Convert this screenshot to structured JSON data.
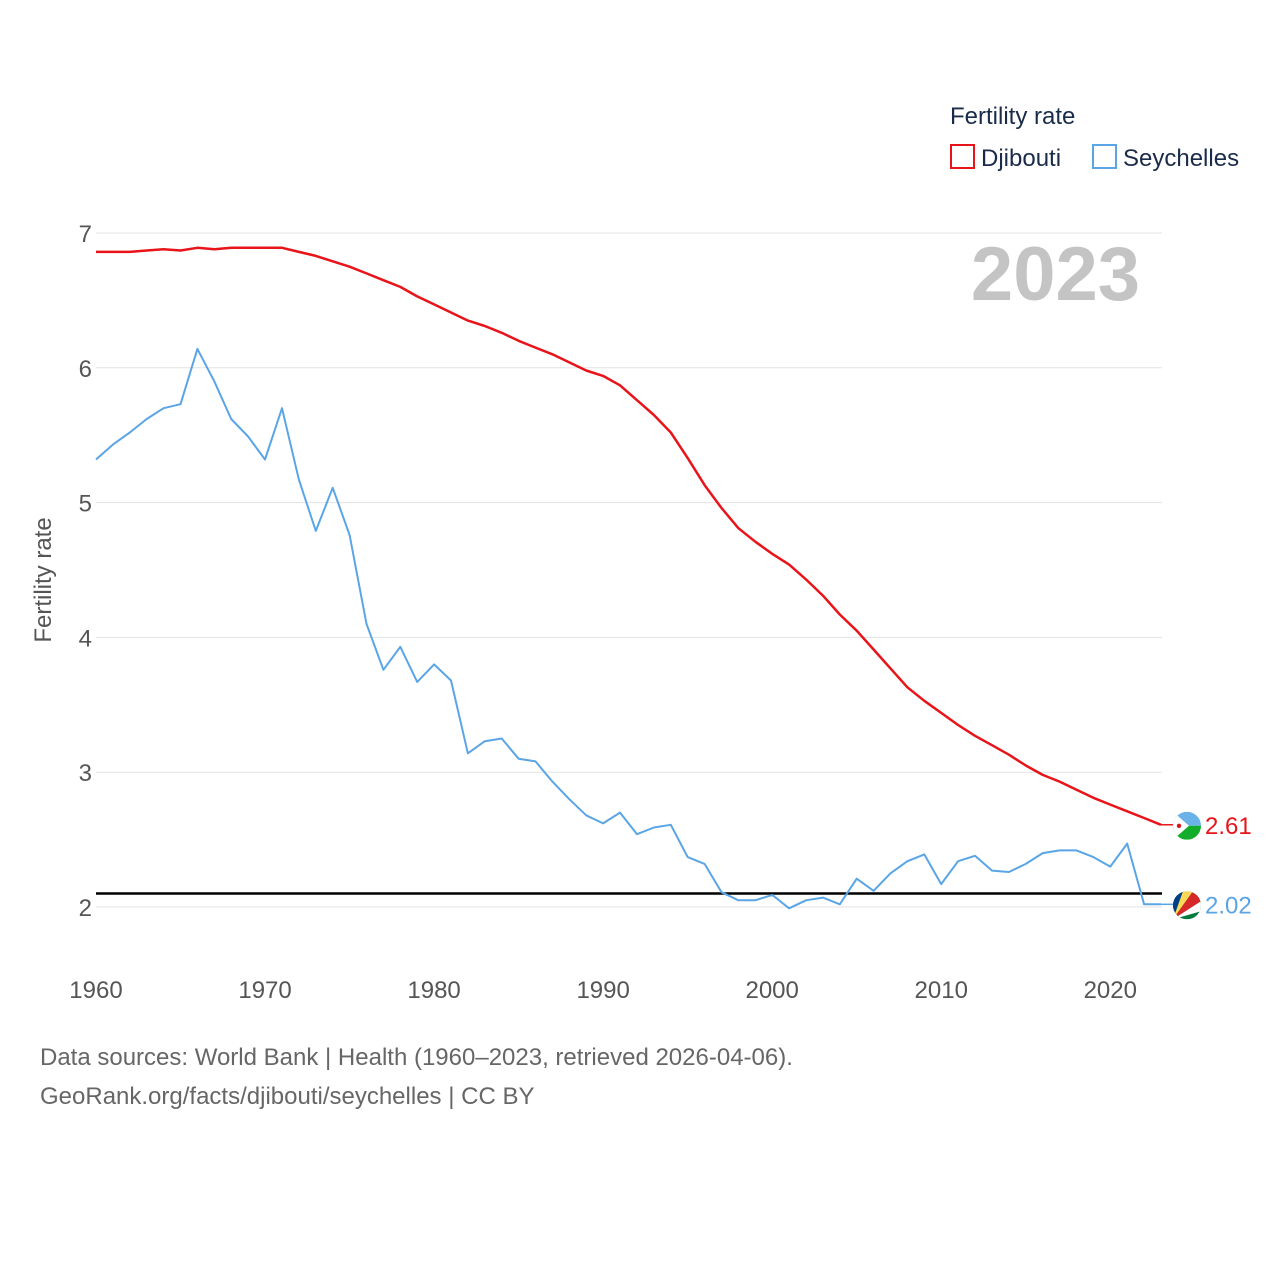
{
  "chart_data": {
    "type": "line",
    "title": "Fertility rate",
    "ylabel": "Fertility rate",
    "xlabel": "",
    "current_year": "2023",
    "xlim": [
      1960,
      2023
    ],
    "ylim": [
      1.8,
      7.1
    ],
    "x_ticks": [
      1960,
      1970,
      1980,
      1990,
      2000,
      2010,
      2020
    ],
    "y_ticks": [
      2,
      3,
      4,
      5,
      6,
      7
    ],
    "reference_line": 2.1,
    "x": [
      1960,
      1961,
      1962,
      1963,
      1964,
      1965,
      1966,
      1967,
      1968,
      1969,
      1970,
      1971,
      1972,
      1973,
      1974,
      1975,
      1976,
      1977,
      1978,
      1979,
      1980,
      1981,
      1982,
      1983,
      1984,
      1985,
      1986,
      1987,
      1988,
      1989,
      1990,
      1991,
      1992,
      1993,
      1994,
      1995,
      1996,
      1997,
      1998,
      1999,
      2000,
      2001,
      2002,
      2003,
      2004,
      2005,
      2006,
      2007,
      2008,
      2009,
      2010,
      2011,
      2012,
      2013,
      2014,
      2015,
      2016,
      2017,
      2018,
      2019,
      2020,
      2021,
      2022,
      2023
    ],
    "series": [
      {
        "name": "Djibouti",
        "color": "#e8141a",
        "end_label": "2.61",
        "flag": "djibouti-flag",
        "values": [
          6.86,
          6.86,
          6.86,
          6.87,
          6.88,
          6.87,
          6.89,
          6.88,
          6.89,
          6.89,
          6.89,
          6.89,
          6.86,
          6.83,
          6.79,
          6.75,
          6.7,
          6.65,
          6.6,
          6.53,
          6.47,
          6.41,
          6.35,
          6.31,
          6.26,
          6.2,
          6.15,
          6.1,
          6.04,
          5.98,
          5.94,
          5.87,
          5.76,
          5.65,
          5.52,
          5.33,
          5.13,
          4.96,
          4.81,
          4.71,
          4.62,
          4.54,
          4.43,
          4.31,
          4.17,
          4.05,
          3.91,
          3.77,
          3.63,
          3.53,
          3.44,
          3.35,
          3.27,
          3.2,
          3.13,
          3.05,
          2.98,
          2.93,
          2.87,
          2.81,
          2.76,
          2.71,
          2.66,
          2.61
        ]
      },
      {
        "name": "Seychelles",
        "color": "#5aa5e6",
        "end_label": "2.02",
        "flag": "seychelles-flag",
        "values": [
          5.32,
          5.43,
          5.52,
          5.62,
          5.7,
          5.73,
          6.14,
          5.9,
          5.62,
          5.49,
          5.32,
          5.7,
          5.17,
          4.79,
          5.11,
          4.76,
          4.1,
          3.76,
          3.93,
          3.67,
          3.8,
          3.68,
          3.14,
          3.23,
          3.25,
          3.1,
          3.08,
          2.93,
          2.8,
          2.68,
          2.62,
          2.7,
          2.54,
          2.59,
          2.61,
          2.37,
          2.32,
          2.11,
          2.05,
          2.05,
          2.09,
          1.99,
          2.05,
          2.07,
          2.02,
          2.21,
          2.12,
          2.25,
          2.34,
          2.39,
          2.17,
          2.34,
          2.38,
          2.27,
          2.26,
          2.32,
          2.4,
          2.42,
          2.42,
          2.37,
          2.3,
          2.47,
          2.02,
          2.02
        ]
      }
    ]
  },
  "source": {
    "line1": "Data sources: World Bank | Health (1960–2023, retrieved 2026-04-06).",
    "line2": "GeoRank.org/facts/djibouti/seychelles | CC BY"
  }
}
